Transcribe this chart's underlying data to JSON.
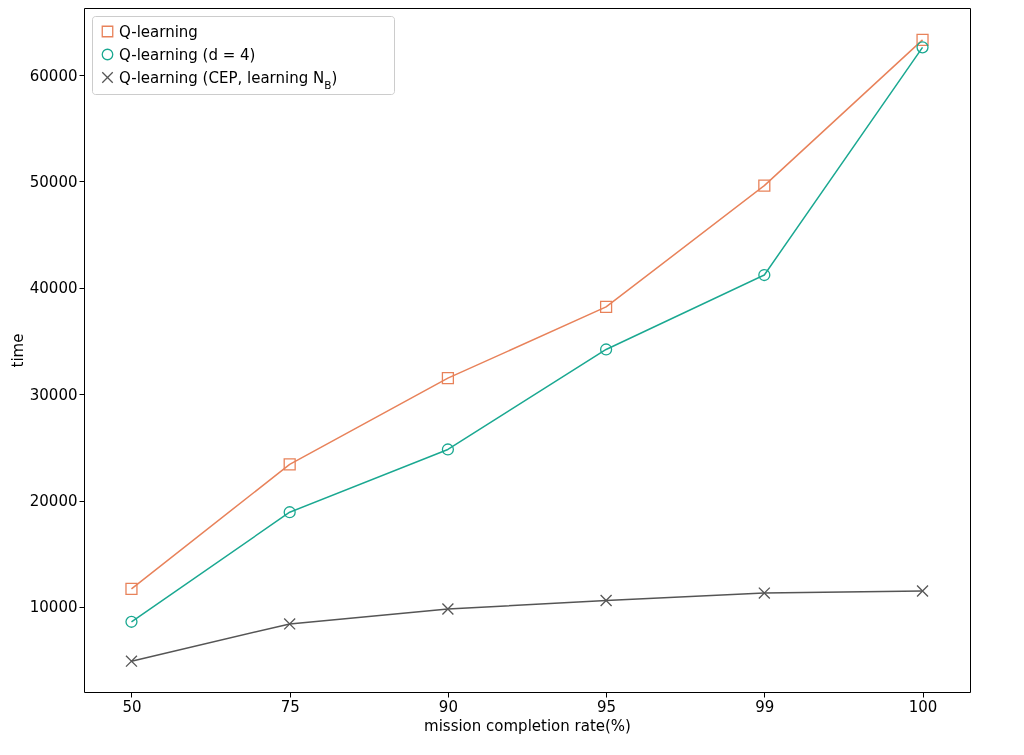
{
  "chart_data": {
    "type": "line",
    "xlabel": "mission completion rate(%)",
    "ylabel": "time",
    "categories": [
      "50",
      "75",
      "90",
      "95",
      "99",
      "100"
    ],
    "ylim": [
      2000,
      66300
    ],
    "yticks": [
      10000,
      20000,
      30000,
      40000,
      50000,
      60000
    ],
    "legend": "top left",
    "series": [
      {
        "name": "Q-learning",
        "color": "#e8825a",
        "marker": "square",
        "values": [
          11700,
          23400,
          31500,
          38200,
          49600,
          63300
        ]
      },
      {
        "name": "Q-learning (d = 4)",
        "color": "#1aa891",
        "marker": "circle",
        "values": [
          8600,
          18900,
          24800,
          34200,
          41200,
          62600
        ]
      },
      {
        "name": "Q-learning (CEP, learning N$_{B}$)",
        "color": "#555555",
        "marker": "cross",
        "values": [
          4900,
          8400,
          9800,
          10600,
          11300,
          11500
        ]
      }
    ]
  }
}
